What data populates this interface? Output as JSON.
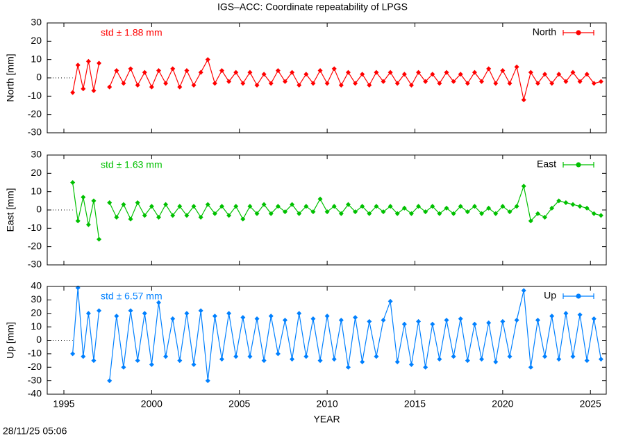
{
  "title": "IGS–ACC: Coordinate repeatability of LPGS",
  "timestamp": "28/11/25 05:06",
  "chart_data": [
    {
      "type": "line",
      "ylabel": "North [mm]",
      "annotation": "std ± 1.88 mm",
      "legend": "top-right",
      "xticklabels": false,
      "xlim": [
        1994.05,
        2025.9
      ],
      "xticks": [
        1995,
        2000,
        2005,
        2010,
        2015,
        2020,
        2025
      ],
      "ylim": [
        -30,
        30
      ],
      "yticks": [
        -30,
        -20,
        -10,
        0,
        10,
        20,
        30
      ],
      "x": [
        1995.5,
        1995.8,
        1996.1,
        1996.4,
        1996.7,
        1997.0,
        1997.3,
        1997.6,
        1998.0,
        1998.4,
        1998.8,
        1999.2,
        1999.6,
        2000.0,
        2000.4,
        2000.8,
        2001.2,
        2001.6,
        2002.0,
        2002.4,
        2002.8,
        2003.2,
        2003.6,
        2004.0,
        2004.4,
        2004.8,
        2005.2,
        2005.6,
        2006.0,
        2006.4,
        2006.8,
        2007.2,
        2007.6,
        2008.0,
        2008.4,
        2008.8,
        2009.2,
        2009.6,
        2010.0,
        2010.4,
        2010.8,
        2011.2,
        2011.6,
        2012.0,
        2012.4,
        2012.8,
        2013.2,
        2013.6,
        2014.0,
        2014.4,
        2014.8,
        2015.2,
        2015.6,
        2016.0,
        2016.4,
        2016.8,
        2017.2,
        2017.6,
        2018.0,
        2018.4,
        2018.8,
        2019.2,
        2019.6,
        2020.0,
        2020.4,
        2020.8,
        2021.2,
        2021.6,
        2022.0,
        2022.4,
        2022.8,
        2023.2,
        2023.6,
        2024.0,
        2024.4,
        2024.8,
        2025.2,
        2025.6
      ],
      "series": [
        {
          "name": "North",
          "color": "#ff0000",
          "values": [
            -8,
            7,
            -6,
            9,
            -7,
            8,
            null,
            -5,
            4,
            -3,
            5,
            -4,
            3,
            -5,
            4,
            -3,
            5,
            -5,
            4,
            -4,
            3,
            10,
            -3,
            4,
            -2,
            3,
            -3,
            3,
            -4,
            2,
            -3,
            4,
            -2,
            3,
            -4,
            2,
            -3,
            4,
            -3,
            5,
            -4,
            3,
            -3,
            2,
            -4,
            3,
            -2,
            3,
            -3,
            2,
            -4,
            3,
            -2,
            2,
            -3,
            3,
            -2,
            2,
            -3,
            3,
            -2,
            5,
            -3,
            4,
            -3,
            6,
            -12,
            3,
            -3,
            2,
            -3,
            2,
            -2,
            3,
            -2,
            2,
            -3,
            -2
          ]
        }
      ]
    },
    {
      "type": "line",
      "ylabel": "East [mm]",
      "annotation": "std ± 1.63 mm",
      "legend": "top-right",
      "xticklabels": false,
      "xlim": [
        1994.05,
        2025.9
      ],
      "xticks": [
        1995,
        2000,
        2005,
        2010,
        2015,
        2020,
        2025
      ],
      "ylim": [
        -30,
        30
      ],
      "yticks": [
        -30,
        -20,
        -10,
        0,
        10,
        20,
        30
      ],
      "x": [
        1995.5,
        1995.8,
        1996.1,
        1996.4,
        1996.7,
        1997.0,
        1997.3,
        1997.6,
        1998.0,
        1998.4,
        1998.8,
        1999.2,
        1999.6,
        2000.0,
        2000.4,
        2000.8,
        2001.2,
        2001.6,
        2002.0,
        2002.4,
        2002.8,
        2003.2,
        2003.6,
        2004.0,
        2004.4,
        2004.8,
        2005.2,
        2005.6,
        2006.0,
        2006.4,
        2006.8,
        2007.2,
        2007.6,
        2008.0,
        2008.4,
        2008.8,
        2009.2,
        2009.6,
        2010.0,
        2010.4,
        2010.8,
        2011.2,
        2011.6,
        2012.0,
        2012.4,
        2012.8,
        2013.2,
        2013.6,
        2014.0,
        2014.4,
        2014.8,
        2015.2,
        2015.6,
        2016.0,
        2016.4,
        2016.8,
        2017.2,
        2017.6,
        2018.0,
        2018.4,
        2018.8,
        2019.2,
        2019.6,
        2020.0,
        2020.4,
        2020.8,
        2021.2,
        2021.6,
        2022.0,
        2022.4,
        2022.8,
        2023.2,
        2023.6,
        2024.0,
        2024.4,
        2024.8,
        2025.2,
        2025.6
      ],
      "series": [
        {
          "name": "East",
          "color": "#00c000",
          "values": [
            15,
            -6,
            7,
            -8,
            5,
            -16,
            null,
            4,
            -4,
            3,
            -5,
            4,
            -3,
            2,
            -4,
            3,
            -3,
            2,
            -3,
            2,
            -4,
            3,
            -2,
            2,
            -3,
            2,
            -5,
            2,
            -2,
            3,
            -2,
            2,
            -1,
            3,
            -2,
            2,
            -1,
            6,
            -1,
            2,
            -2,
            3,
            -1,
            2,
            -2,
            2,
            -1,
            2,
            -2,
            1,
            -2,
            2,
            -1,
            2,
            -2,
            1,
            -2,
            2,
            -1,
            2,
            -2,
            1,
            -2,
            2,
            -1,
            2,
            13,
            -6,
            -2,
            -4,
            1,
            5,
            4,
            3,
            2,
            1,
            -2,
            -3
          ]
        }
      ]
    },
    {
      "type": "line",
      "ylabel": "Up [mm]",
      "xlabel": "YEAR",
      "annotation": "std ± 6.57 mm",
      "legend": "top-right",
      "xticklabels": true,
      "xlim": [
        1994.05,
        2025.9
      ],
      "xticks": [
        1995,
        2000,
        2005,
        2010,
        2015,
        2020,
        2025
      ],
      "ylim": [
        -40,
        40
      ],
      "yticks": [
        -40,
        -30,
        -20,
        -10,
        0,
        10,
        20,
        30,
        40
      ],
      "x": [
        1995.5,
        1995.8,
        1996.1,
        1996.4,
        1996.7,
        1997.0,
        1997.3,
        1997.6,
        1998.0,
        1998.4,
        1998.8,
        1999.2,
        1999.6,
        2000.0,
        2000.4,
        2000.8,
        2001.2,
        2001.6,
        2002.0,
        2002.4,
        2002.8,
        2003.2,
        2003.6,
        2004.0,
        2004.4,
        2004.8,
        2005.2,
        2005.6,
        2006.0,
        2006.4,
        2006.8,
        2007.2,
        2007.6,
        2008.0,
        2008.4,
        2008.8,
        2009.2,
        2009.6,
        2010.0,
        2010.4,
        2010.8,
        2011.2,
        2011.6,
        2012.0,
        2012.4,
        2012.8,
        2013.2,
        2013.6,
        2014.0,
        2014.4,
        2014.8,
        2015.2,
        2015.6,
        2016.0,
        2016.4,
        2016.8,
        2017.2,
        2017.6,
        2018.0,
        2018.4,
        2018.8,
        2019.2,
        2019.6,
        2020.0,
        2020.4,
        2020.8,
        2021.2,
        2021.6,
        2022.0,
        2022.4,
        2022.8,
        2023.2,
        2023.6,
        2024.0,
        2024.4,
        2024.8,
        2025.2,
        2025.6
      ],
      "series": [
        {
          "name": "Up",
          "color": "#0080ff",
          "values": [
            -10,
            39,
            -12,
            20,
            -15,
            22,
            null,
            -30,
            18,
            -20,
            22,
            -15,
            20,
            -18,
            28,
            -12,
            16,
            -15,
            20,
            -18,
            22,
            -30,
            18,
            -14,
            20,
            -12,
            17,
            -12,
            16,
            -15,
            18,
            -10,
            15,
            -14,
            20,
            -12,
            16,
            -15,
            18,
            -14,
            15,
            -20,
            17,
            -16,
            14,
            -12,
            15,
            29,
            -16,
            12,
            -18,
            14,
            -20,
            12,
            -14,
            15,
            -12,
            16,
            -15,
            12,
            -14,
            13,
            -16,
            14,
            -12,
            15,
            37,
            -20,
            15,
            -12,
            18,
            -14,
            20,
            -12,
            19,
            -15,
            16,
            -14
          ]
        }
      ]
    }
  ]
}
